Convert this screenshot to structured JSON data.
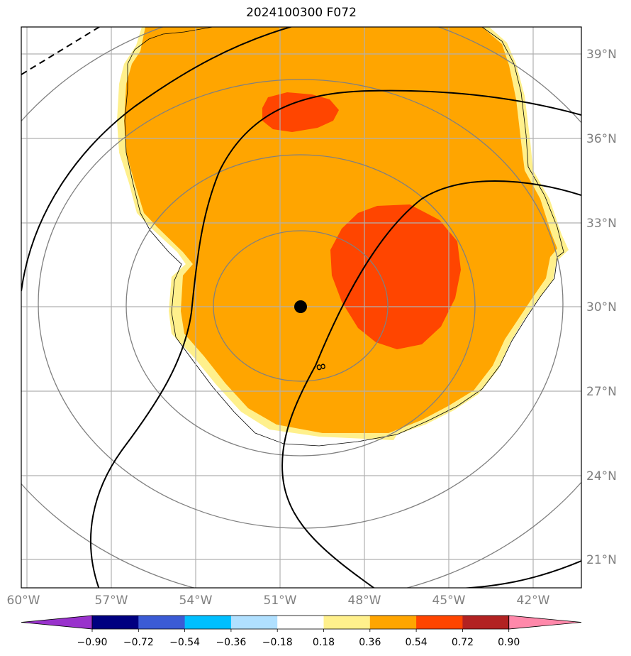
{
  "title": "2024100300 F072",
  "storm_center": {
    "lon": -50.7,
    "lat": 30.0
  },
  "map_extent": {
    "lon": [
      -60,
      -40
    ],
    "lat": [
      20,
      40
    ]
  },
  "lon_ticks": [
    "60°W",
    "57°W",
    "54°W",
    "51°W",
    "48°W",
    "45°W",
    "42°W"
  ],
  "lat_ticks": [
    "39°N",
    "36°N",
    "33°N",
    "30°N",
    "27°N",
    "24°N",
    "21°N"
  ],
  "contour_label": "8",
  "colorbar": {
    "ticks": [
      "−0.90",
      "−0.72",
      "−0.54",
      "−0.36",
      "−0.18",
      "0.18",
      "0.36",
      "0.54",
      "0.72",
      "0.90"
    ],
    "colors": [
      "#9932cc",
      "#000080",
      "#3b5bd5",
      "#00bfff",
      "#b0e0ff",
      "#ffffff",
      "#fff08c",
      "#ffa500",
      "#ff4500",
      "#b22222",
      "#ff88aa"
    ]
  },
  "chart_data": {
    "type": "heatmap",
    "title": "2024100300 F072",
    "levels": [
      -0.9,
      -0.72,
      -0.54,
      -0.36,
      -0.18,
      0.18,
      0.36,
      0.54,
      0.72,
      0.9
    ],
    "lon_range": [
      -60,
      -40
    ],
    "lat_range": [
      20,
      40
    ],
    "features": [
      "orange 0.36–0.54 region covering most of domain",
      "red-orange 0.54–0.72 region centered near 46.5°W 31°N",
      "small red-orange region near 49.5°W 37°N"
    ]
  }
}
